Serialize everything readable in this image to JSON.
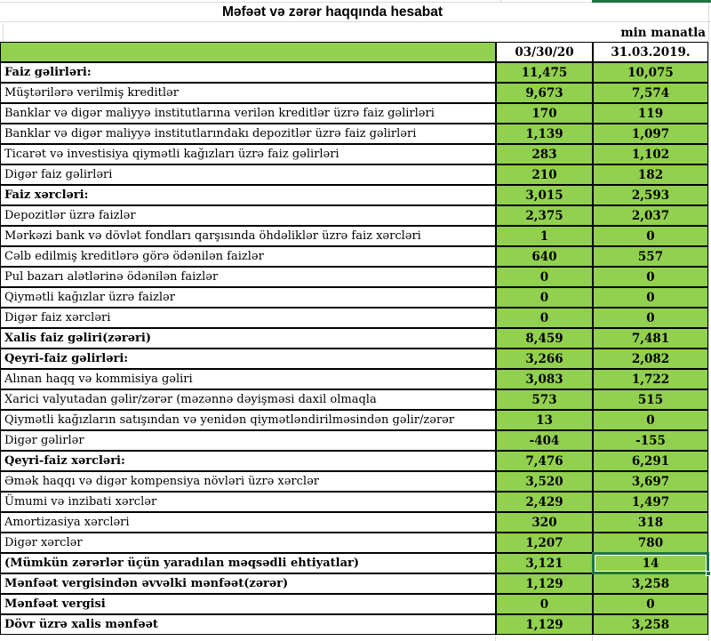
{
  "title": "Məfəət və zərər haqqında hesabat",
  "unit_note": "min manatla",
  "table": {
    "column_headers": [
      "03/30/20",
      "31.03.2019."
    ],
    "rows": [
      {
        "label": "Faiz gəlirləri:",
        "current": "11,475",
        "prior": "10,075",
        "bold": true
      },
      {
        "label": "Müştərilərə verilmiş kreditlər",
        "current": "9,673",
        "prior": "7,574",
        "bold": false
      },
      {
        "label": "Banklar və digər maliyyə institutlarına verilən kreditlər üzrə faiz gəlirləri",
        "current": "170",
        "prior": "119",
        "bold": false
      },
      {
        "label": "Banklar və digər maliyyə institutlarındakı depozitlər üzrə faiz gəlirləri",
        "current": "1,139",
        "prior": "1,097",
        "bold": false
      },
      {
        "label": "Ticarət və investisiya qiymətli kağızları üzrə faiz gəlirləri",
        "current": "283",
        "prior": "1,102",
        "bold": false
      },
      {
        "label": "Digər faiz gəlirləri",
        "current": "210",
        "prior": "182",
        "bold": false
      },
      {
        "label": "Faiz xərcləri:",
        "current": "3,015",
        "prior": "2,593",
        "bold": true
      },
      {
        "label": "Depozitlər üzrə faizlər",
        "current": "2,375",
        "prior": "2,037",
        "bold": false
      },
      {
        "label": "Mərkəzi bank və dövlət fondları qarşısında öhdəliklər üzrə faiz xərcləri",
        "current": "1",
        "prior": "0",
        "bold": false
      },
      {
        "label": "Cəlb edilmiş kreditlərə görə ödənilən faizlər",
        "current": "640",
        "prior": "557",
        "bold": false
      },
      {
        "label": "Pul bazarı alətlərinə ödənilən faizlər",
        "current": "0",
        "prior": "0",
        "bold": false
      },
      {
        "label": "Qiymətli kağızlar üzrə faizlər",
        "current": "0",
        "prior": "0",
        "bold": false
      },
      {
        "label": "Digər faiz xərcləri",
        "current": "0",
        "prior": "0",
        "bold": false
      },
      {
        "label": "Xalis faiz gəliri(zərəri)",
        "current": "8,459",
        "prior": "7,481",
        "bold": true
      },
      {
        "label": "Qeyri-faiz gəlirləri:",
        "current": "3,266",
        "prior": "2,082",
        "bold": true
      },
      {
        "label": "Alınan haqq və kommisiya gəliri",
        "current": "3,083",
        "prior": "1,722",
        "bold": false
      },
      {
        "label": "Xarici valyutadan gəlir/zərər (məzənnə dəyişməsi daxil olmaqla",
        "current": "573",
        "prior": "515",
        "bold": false
      },
      {
        "label": "Qiymətli kağızların satışından və yenidən qiymətləndirilməsindən gəlir/zərər",
        "current": "13",
        "prior": "0",
        "bold": false
      },
      {
        "label": "Digər gəlirlər",
        "current": "-404",
        "prior": "-155",
        "bold": false
      },
      {
        "label": "Qeyri-faiz xərcləri:",
        "current": "7,476",
        "prior": "6,291",
        "bold": true
      },
      {
        "label": "Əmək haqqı və digər kompensiya növləri üzrə xərclər",
        "current": "3,520",
        "prior": "3,697",
        "bold": false
      },
      {
        "label": "Ümumi və inzibati xərclər",
        "current": "2,429",
        "prior": "1,497",
        "bold": false
      },
      {
        "label": "Amortizasiya xərcləri",
        "current": "320",
        "prior": "318",
        "bold": false
      },
      {
        "label": "Digər xərclər",
        "current": "1,207",
        "prior": "780",
        "bold": false
      },
      {
        "label": "(Mümkün zərərlər üçün yaradılan məqsədli ehtiyatlar)",
        "current": "3,121",
        "prior": "14",
        "bold": true
      },
      {
        "label": "Mənfəət vergisindən əvvəlki mənfəət(zərər)",
        "current": "1,129",
        "prior": "3,258",
        "bold": true
      },
      {
        "label": "Mənfəət vergisi",
        "current": "0",
        "prior": "0",
        "bold": true
      },
      {
        "label": "Dövr üzrə xalis mənfəət",
        "current": "1,129",
        "prior": "3,258",
        "bold": true
      }
    ],
    "selection": {
      "row_index": 24,
      "column": "prior",
      "value": "14"
    }
  },
  "colors": {
    "cell_green": "#92D050",
    "selection_green": "#217346",
    "gridline_gray": "#d9d9d9",
    "cell_border": "#000000"
  }
}
